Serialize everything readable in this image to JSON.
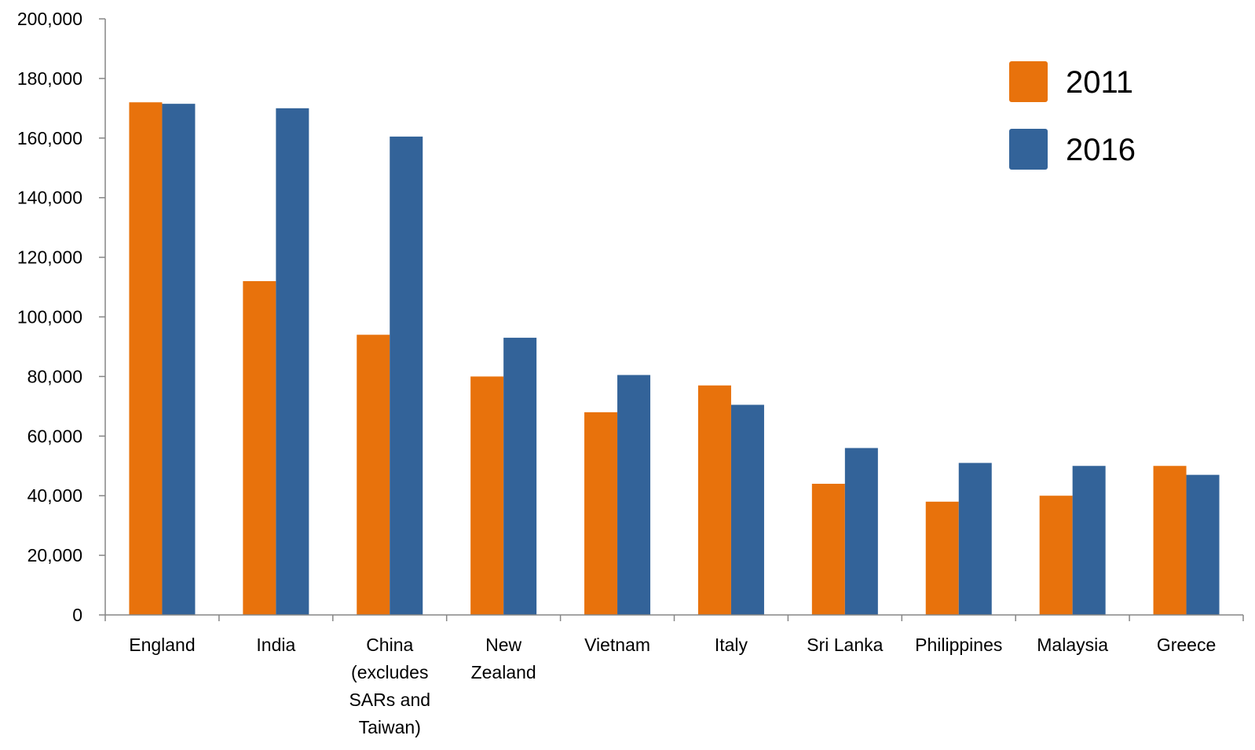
{
  "chart_data": {
    "type": "bar",
    "title": "",
    "xlabel": "",
    "ylabel": "",
    "categories": [
      [
        "England"
      ],
      [
        "India"
      ],
      [
        "China",
        "(excludes",
        "SARs and",
        "Taiwan)"
      ],
      [
        "New",
        "Zealand"
      ],
      [
        "Vietnam"
      ],
      [
        "Italy"
      ],
      [
        "Sri Lanka"
      ],
      [
        "Philippines"
      ],
      [
        "Malaysia"
      ],
      [
        "Greece"
      ]
    ],
    "series": [
      {
        "name": "2011",
        "color": "#E8720C",
        "values": [
          172000,
          112000,
          94000,
          80000,
          68000,
          77000,
          44000,
          38000,
          40000,
          50000
        ]
      },
      {
        "name": "2016",
        "color": "#336399",
        "values": [
          171500,
          170000,
          160500,
          93000,
          80500,
          70500,
          56000,
          51000,
          50000,
          47000
        ]
      }
    ],
    "ylim": [
      0,
      200000
    ],
    "yticks": [
      0,
      20000,
      40000,
      60000,
      80000,
      100000,
      120000,
      140000,
      160000,
      180000,
      200000
    ],
    "ytick_labels": [
      "0",
      "20,000",
      "40,000",
      "60,000",
      "80,000",
      "100,000",
      "120,000",
      "140,000",
      "160,000",
      "180,000",
      "200,000"
    ],
    "grid": false,
    "legend_position": "top-right",
    "axis_color": "#868686"
  }
}
